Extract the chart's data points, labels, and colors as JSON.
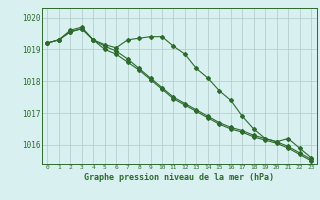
{
  "hours": [
    0,
    1,
    2,
    3,
    4,
    5,
    6,
    7,
    8,
    9,
    10,
    11,
    12,
    13,
    14,
    15,
    16,
    17,
    18,
    19,
    20,
    21,
    22,
    23
  ],
  "line1": [
    1019.2,
    1019.3,
    1019.6,
    1019.7,
    1019.3,
    1019.15,
    1019.05,
    1019.3,
    1019.35,
    1019.4,
    1019.4,
    1019.1,
    1018.85,
    1018.4,
    1018.1,
    1017.7,
    1017.4,
    1016.9,
    1016.5,
    1016.2,
    1016.1,
    1016.2,
    1015.9,
    1015.6
  ],
  "line2": [
    1019.2,
    1019.3,
    1019.55,
    1019.65,
    1019.3,
    1019.1,
    1018.95,
    1018.7,
    1018.4,
    1018.1,
    1017.8,
    1017.5,
    1017.3,
    1017.1,
    1016.9,
    1016.7,
    1016.55,
    1016.45,
    1016.3,
    1016.2,
    1016.1,
    1015.95,
    1015.75,
    1015.55
  ],
  "line3": [
    1019.2,
    1019.3,
    1019.55,
    1019.65,
    1019.3,
    1019.0,
    1018.85,
    1018.6,
    1018.35,
    1018.05,
    1017.75,
    1017.45,
    1017.25,
    1017.05,
    1016.85,
    1016.65,
    1016.5,
    1016.4,
    1016.25,
    1016.15,
    1016.05,
    1015.9,
    1015.7,
    1015.5
  ],
  "line_color": "#2d6a2d",
  "bg_color": "#d8f0f0",
  "grid_color": "#b0c8c8",
  "xlabel": "Graphe pression niveau de la mer (hPa)",
  "xlim_min": -0.5,
  "xlim_max": 23.5,
  "ylim_min": 1015.4,
  "ylim_max": 1020.3,
  "yticks": [
    1016,
    1017,
    1018,
    1019,
    1020
  ],
  "xticks": [
    0,
    1,
    2,
    3,
    4,
    5,
    6,
    7,
    8,
    9,
    10,
    11,
    12,
    13,
    14,
    15,
    16,
    17,
    18,
    19,
    20,
    21,
    22,
    23
  ]
}
